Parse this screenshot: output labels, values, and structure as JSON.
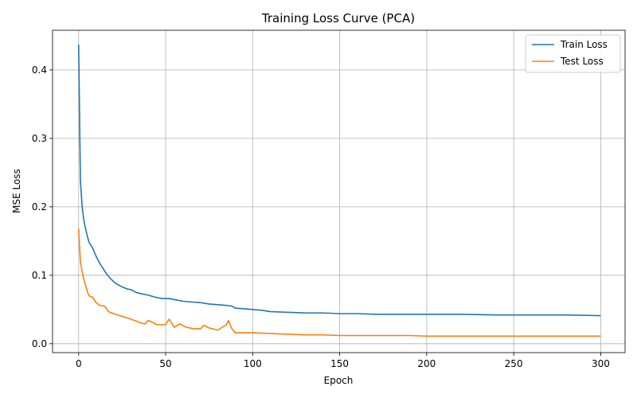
{
  "chart_data": {
    "type": "line",
    "title": "Training Loss Curve (PCA)",
    "xlabel": "Epoch",
    "ylabel": "MSE Loss",
    "xlim": [
      -15,
      314
    ],
    "ylim": [
      -0.013,
      0.458
    ],
    "xticks": [
      0,
      50,
      100,
      150,
      200,
      250,
      300
    ],
    "yticks": [
      0.0,
      0.1,
      0.2,
      0.3,
      0.4
    ],
    "ytick_labels": [
      "0.0",
      "0.1",
      "0.2",
      "0.3",
      "0.4"
    ],
    "grid": true,
    "legend_position": "top-right",
    "series": [
      {
        "name": "Train Loss",
        "color": "#1f77b4",
        "x": [
          0,
          1,
          2,
          3,
          4,
          5,
          6,
          8,
          10,
          12,
          14,
          16,
          18,
          20,
          22,
          25,
          28,
          30,
          33,
          36,
          40,
          44,
          48,
          52,
          56,
          60,
          65,
          70,
          75,
          80,
          85,
          88,
          90,
          95,
          100,
          105,
          110,
          120,
          130,
          140,
          150,
          160,
          170,
          180,
          190,
          200,
          220,
          240,
          260,
          280,
          300
        ],
        "y": [
          0.437,
          0.24,
          0.2,
          0.18,
          0.168,
          0.157,
          0.148,
          0.14,
          0.128,
          0.118,
          0.11,
          0.102,
          0.096,
          0.091,
          0.087,
          0.083,
          0.08,
          0.079,
          0.075,
          0.073,
          0.071,
          0.068,
          0.066,
          0.066,
          0.064,
          0.062,
          0.061,
          0.06,
          0.058,
          0.057,
          0.056,
          0.055,
          0.052,
          0.051,
          0.05,
          0.049,
          0.047,
          0.046,
          0.045,
          0.045,
          0.044,
          0.044,
          0.043,
          0.043,
          0.043,
          0.043,
          0.043,
          0.042,
          0.042,
          0.042,
          0.041
        ]
      },
      {
        "name": "Test Loss",
        "color": "#ff7f0e",
        "x": [
          0,
          1,
          2,
          3,
          4,
          5,
          6,
          8,
          10,
          12,
          15,
          17,
          20,
          25,
          30,
          35,
          38,
          40,
          45,
          50,
          52,
          55,
          58,
          62,
          66,
          70,
          72,
          75,
          80,
          85,
          86,
          88,
          90,
          95,
          100,
          110,
          120,
          130,
          140,
          150,
          160,
          170,
          180,
          190,
          200,
          220,
          240,
          260,
          280,
          300
        ],
        "y": [
          0.168,
          0.12,
          0.105,
          0.094,
          0.085,
          0.076,
          0.07,
          0.068,
          0.06,
          0.056,
          0.055,
          0.047,
          0.044,
          0.04,
          0.036,
          0.031,
          0.029,
          0.034,
          0.028,
          0.028,
          0.036,
          0.024,
          0.029,
          0.024,
          0.022,
          0.022,
          0.027,
          0.023,
          0.02,
          0.028,
          0.034,
          0.022,
          0.016,
          0.016,
          0.016,
          0.015,
          0.014,
          0.013,
          0.013,
          0.012,
          0.012,
          0.012,
          0.012,
          0.012,
          0.011,
          0.011,
          0.011,
          0.011,
          0.011,
          0.011
        ]
      }
    ]
  }
}
